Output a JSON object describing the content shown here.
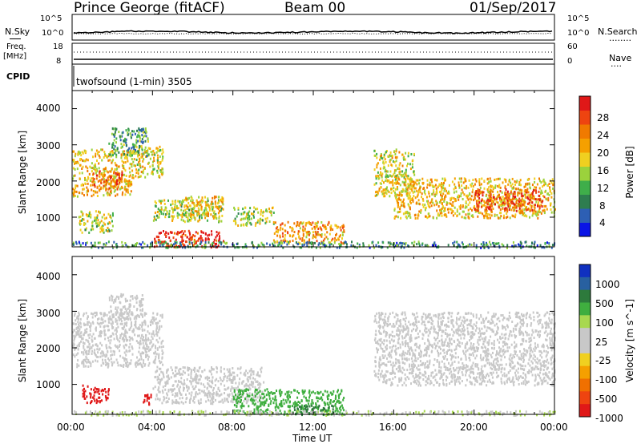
{
  "header": {
    "station": "Prince George (fitACF)",
    "beam": "Beam 00",
    "date": "01/Sep/2017"
  },
  "top_panels": {
    "nsky_label": "N.Sky",
    "nsky_ticks": [
      "10^5",
      "10^0"
    ],
    "nsearch_label": "N.Search",
    "nsearch_ticks": [
      "10^5",
      "10^0"
    ],
    "freq_label_1": "Freq.",
    "freq_label_2": "[MHz]",
    "freq_ticks": [
      "18",
      "8"
    ],
    "nave_label": "Nave",
    "nave_ticks": [
      "60",
      "0"
    ],
    "cpid_label": "CPID",
    "cpid_value": "twofsound (1-min) 3505"
  },
  "chart_data": [
    {
      "type": "heatmap",
      "name": "power",
      "ylabel": "Slant Range [km]",
      "yticks": [
        "4000",
        "3000",
        "2000",
        "1000"
      ],
      "ylim": [
        180,
        4500
      ],
      "colorbar_label": "Power [dB]",
      "colorbar_ticks": [
        "28",
        "24",
        "20",
        "16",
        "12",
        "8",
        "4"
      ],
      "colorbar_colors": [
        "#0a14e6",
        "#2d5fb4",
        "#2e7d4f",
        "#3fae4a",
        "#9bd23c",
        "#f0d020",
        "#f5a000",
        "#f07a00",
        "#ee4410",
        "#e01818"
      ],
      "regions": [
        {
          "t": [
            0.0,
            3.0
          ],
          "r": [
            1600,
            2900
          ],
          "level": 18
        },
        {
          "t": [
            1.0,
            2.5
          ],
          "r": [
            1800,
            2300
          ],
          "level": 24
        },
        {
          "t": [
            3.0,
            4.5
          ],
          "r": [
            2100,
            3000
          ],
          "level": 16
        },
        {
          "t": [
            1.8,
            3.8
          ],
          "r": [
            2700,
            3500
          ],
          "level": 10
        },
        {
          "t": [
            0.3,
            2.0
          ],
          "r": [
            600,
            1200
          ],
          "level": 14
        },
        {
          "t": [
            4.0,
            7.5
          ],
          "r": [
            900,
            1500
          ],
          "level": 14
        },
        {
          "t": [
            5.5,
            7.5
          ],
          "r": [
            1000,
            1600
          ],
          "level": 18
        },
        {
          "t": [
            4.0,
            7.5
          ],
          "r": [
            200,
            650
          ],
          "level": 28
        },
        {
          "t": [
            8.0,
            10.0
          ],
          "r": [
            800,
            1300
          ],
          "level": 14
        },
        {
          "t": [
            10.0,
            13.5
          ],
          "r": [
            300,
            900
          ],
          "level": 20
        },
        {
          "t": [
            15.0,
            17.0
          ],
          "r": [
            1600,
            2900
          ],
          "level": 16
        },
        {
          "t": [
            16.0,
            24.0
          ],
          "r": [
            1000,
            2100
          ],
          "level": 18
        },
        {
          "t": [
            20.0,
            23.5
          ],
          "r": [
            1200,
            1800
          ],
          "level": 26
        },
        {
          "t": [
            0.0,
            24.0
          ],
          "r": [
            180,
            350
          ],
          "level": 8
        }
      ]
    },
    {
      "type": "heatmap",
      "name": "velocity",
      "ylabel": "Slant Range [km]",
      "yticks": [
        "4000",
        "3000",
        "2000",
        "1000"
      ],
      "ylim": [
        180,
        4500
      ],
      "xlabel": "Time UT",
      "xticks": [
        "00:00",
        "04:00",
        "08:00",
        "12:00",
        "16:00",
        "20:00",
        "00:00"
      ],
      "xlim": [
        0,
        24
      ],
      "colorbar_label": "Velocity [m s^-1]",
      "colorbar_ticks": [
        "1000",
        "500",
        "100",
        "25",
        "-25",
        "-100",
        "-500",
        "-1000"
      ],
      "colorbar_colors": [
        "#1030c0",
        "#2860a0",
        "#2d7a3c",
        "#3fae3f",
        "#a8d850",
        "#c8c8c8",
        "#c8c8c8",
        "#f0d020",
        "#f5a000",
        "#f07000",
        "#ee4410",
        "#e01818"
      ],
      "regions": [
        {
          "t": [
            0.0,
            4.5
          ],
          "r": [
            1500,
            3000
          ],
          "v": 0
        },
        {
          "t": [
            1.8,
            3.5
          ],
          "r": [
            2800,
            3500
          ],
          "v": 0
        },
        {
          "t": [
            0.5,
            1.8
          ],
          "r": [
            500,
            1000
          ],
          "v": -800
        },
        {
          "t": [
            3.5,
            3.9
          ],
          "r": [
            450,
            750
          ],
          "v": -600
        },
        {
          "t": [
            4.0,
            9.5
          ],
          "r": [
            500,
            1500
          ],
          "v": 0
        },
        {
          "t": [
            8.0,
            13.5
          ],
          "r": [
            200,
            900
          ],
          "v": 150
        },
        {
          "t": [
            11.0,
            13.0
          ],
          "r": [
            200,
            450
          ],
          "v": 300
        },
        {
          "t": [
            15.0,
            24.0
          ],
          "r": [
            1000,
            3000
          ],
          "v": 0
        },
        {
          "t": [
            0.0,
            24.0
          ],
          "r": [
            180,
            300
          ],
          "v": 60
        }
      ]
    }
  ]
}
